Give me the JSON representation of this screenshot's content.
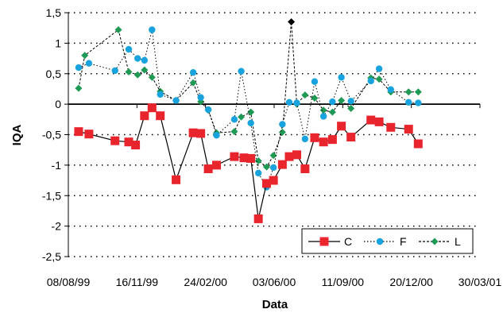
{
  "chart_data": {
    "type": "line",
    "xlabel": "Data",
    "ylabel": "IQA",
    "ylim": [
      -2.5,
      1.5
    ],
    "yticks": [
      1.5,
      1,
      0.5,
      0,
      -0.5,
      -1,
      -1.5,
      -2,
      -2.5
    ],
    "ytick_labels": [
      "1,5",
      "1",
      "0,5",
      "0",
      "-0,5",
      "-1",
      "-1,5",
      "-2",
      "-2,5"
    ],
    "xlim": [
      "08/08/99",
      "30/03/01"
    ],
    "xtick_labels": [
      "08/08/99",
      "16/11/99",
      "24/02/00",
      "03/06/00",
      "11/09/00",
      "20/12/00",
      "30/03/01"
    ],
    "grid": "horizontal dotted",
    "legend_position": "bottom-right",
    "series": [
      {
        "name": "C",
        "color": "#e8242c",
        "marker": "square",
        "line": "solid",
        "points": [
          [
            "23/08/99",
            -0.45
          ],
          [
            "07/09/99",
            -0.49
          ],
          [
            "15/10/99",
            -0.6
          ],
          [
            "04/11/99",
            -0.62
          ],
          [
            "14/11/99",
            -0.67
          ],
          [
            "27/11/99",
            -0.19
          ],
          [
            "08/12/99",
            -0.06
          ],
          [
            "20/12/99",
            -0.19
          ],
          [
            "12/01/00",
            -1.24
          ],
          [
            "06/02/00",
            -0.47
          ],
          [
            "17/02/00",
            -0.48
          ],
          [
            "28/02/00",
            -1.06
          ],
          [
            "11/03/00",
            -1.0
          ],
          [
            "06/04/00",
            -0.86
          ],
          [
            "20/04/00",
            -0.88
          ],
          [
            "30/04/00",
            -0.89
          ],
          [
            "11/05/00",
            -1.88
          ],
          [
            "23/05/00",
            -1.3
          ],
          [
            "02/06/00",
            -1.25
          ],
          [
            "15/06/00",
            -0.99
          ],
          [
            "25/06/00",
            -0.86
          ],
          [
            "06/07/00",
            -0.83
          ],
          [
            "18/07/00",
            -1.06
          ],
          [
            "01/08/00",
            -0.55
          ],
          [
            "14/08/00",
            -0.62
          ],
          [
            "27/08/00",
            -0.58
          ],
          [
            "09/09/00",
            -0.36
          ],
          [
            "23/09/00",
            -0.54
          ],
          [
            "22/10/00",
            -0.26
          ],
          [
            "03/11/00",
            -0.29
          ],
          [
            "20/11/00",
            -0.38
          ],
          [
            "16/12/00",
            -0.41
          ],
          [
            "30/12/00",
            -0.65
          ]
        ]
      },
      {
        "name": "F",
        "color": "#19a3de",
        "marker": "circle",
        "line": "dotted",
        "points": [
          [
            "23/08/99",
            0.6
          ],
          [
            "07/09/99",
            0.67
          ],
          [
            "15/10/99",
            0.55
          ],
          [
            "04/11/99",
            0.9
          ],
          [
            "17/11/99",
            0.75
          ],
          [
            "27/11/99",
            0.72
          ],
          [
            "08/12/99",
            1.22
          ],
          [
            "20/12/99",
            0.16
          ],
          [
            "12/01/00",
            0.06
          ],
          [
            "06/02/00",
            0.52
          ],
          [
            "17/02/00",
            0.11
          ],
          [
            "28/02/00",
            -0.09
          ],
          [
            "11/03/00",
            -0.51
          ],
          [
            "06/04/00",
            -0.25
          ],
          [
            "16/04/00",
            0.54
          ],
          [
            "30/04/00",
            -0.31
          ],
          [
            "11/05/00",
            -1.13
          ],
          [
            "23/05/00",
            -1.36
          ],
          [
            "02/06/00",
            -1.04
          ],
          [
            "15/06/00",
            -0.33
          ],
          [
            "25/06/00",
            0.03
          ],
          [
            "06/07/00",
            0.02
          ],
          [
            "18/07/00",
            -0.57
          ],
          [
            "01/08/00",
            0.37
          ],
          [
            "14/08/00",
            -0.2
          ],
          [
            "27/08/00",
            0.04
          ],
          [
            "09/09/00",
            0.44
          ],
          [
            "23/09/00",
            0.05
          ],
          [
            "22/10/00",
            0.38
          ],
          [
            "03/11/00",
            0.58
          ],
          [
            "20/11/00",
            0.24
          ],
          [
            "16/12/00",
            0.03
          ],
          [
            "30/12/00",
            0.02
          ]
        ]
      },
      {
        "name": "L",
        "color": "#1f9a55",
        "marker": "diamond",
        "line": "dashed",
        "points": [
          [
            "23/08/99",
            0.26
          ],
          [
            "01/09/99",
            0.8
          ],
          [
            "20/10/99",
            1.22
          ],
          [
            "04/11/99",
            0.53
          ],
          [
            "17/11/99",
            0.48
          ],
          [
            "27/11/99",
            0.56
          ],
          [
            "08/12/99",
            0.44
          ],
          [
            "20/12/99",
            0.21
          ],
          [
            "12/01/00",
            0.06
          ],
          [
            "06/02/00",
            0.35
          ],
          [
            "17/02/00",
            0.04
          ],
          [
            "28/02/00",
            -0.1
          ],
          [
            "11/03/00",
            -0.47
          ],
          [
            "06/04/00",
            -0.45
          ],
          [
            "16/04/00",
            -0.21
          ],
          [
            "30/04/00",
            -0.13
          ],
          [
            "11/05/00",
            -0.93
          ],
          [
            "23/05/00",
            -1.03
          ],
          [
            "02/06/00",
            -0.84
          ],
          [
            "15/06/00",
            -0.46
          ],
          [
            "28/06/00",
            1.35
          ],
          [
            "06/07/00",
            0.0
          ],
          [
            "18/07/00",
            0.15
          ],
          [
            "01/08/00",
            0.1
          ],
          [
            "14/08/00",
            -0.1
          ],
          [
            "27/08/00",
            -0.13
          ],
          [
            "09/09/00",
            0.06
          ],
          [
            "23/09/00",
            -0.07
          ],
          [
            "22/10/00",
            0.43
          ],
          [
            "03/11/00",
            0.41
          ],
          [
            "20/11/00",
            0.2
          ],
          [
            "16/12/00",
            0.2
          ],
          [
            "30/12/00",
            0.2
          ]
        ]
      }
    ]
  }
}
